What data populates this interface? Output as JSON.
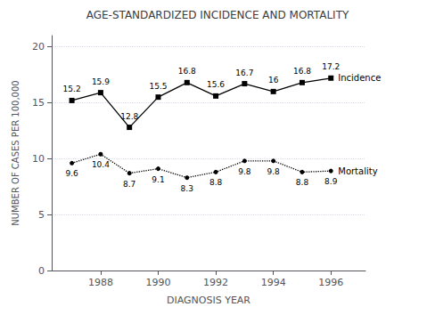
{
  "chart_data": {
    "type": "line",
    "title": "AGE-STANDARDIZED INCIDENCE AND MORTALITY",
    "xlabel": "DIAGNOSIS YEAR",
    "ylabel": "NUMBER OF CASES PER 100,000",
    "x": [
      1987,
      1988,
      1989,
      1990,
      1991,
      1992,
      1993,
      1994,
      1995,
      1996
    ],
    "series": [
      {
        "name": "Incidence",
        "color": "#000000",
        "line_style": "solid",
        "marker": "square",
        "values": [
          15.2,
          15.9,
          12.8,
          15.5,
          16.8,
          15.6,
          16.7,
          16.0,
          16.8,
          17.2
        ]
      },
      {
        "name": "Mortality",
        "color": "#000000",
        "line_style": "dotted",
        "marker": "circle",
        "values": [
          9.6,
          10.4,
          8.7,
          9.1,
          8.3,
          8.8,
          9.8,
          9.8,
          8.8,
          8.9
        ]
      }
    ],
    "xlim": [
      1986.3,
      1997.2
    ],
    "xticks": [
      1988,
      1990,
      1992,
      1994,
      1996
    ],
    "ylim": [
      0,
      21
    ],
    "yticks": [
      0,
      5,
      10,
      15,
      20
    ],
    "grid": true,
    "data_labels": true
  }
}
